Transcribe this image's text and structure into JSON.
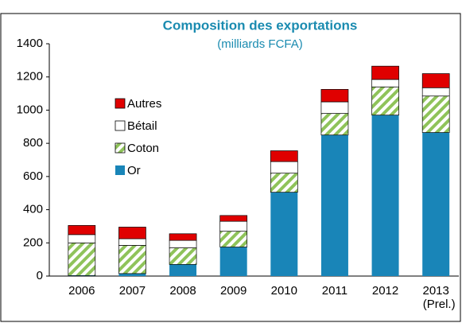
{
  "chart_data": {
    "type": "stacked_bar",
    "title": "Composition des exportations",
    "subtitle": "(milliards FCFA)",
    "categories": [
      "2006",
      "2007",
      "2008",
      "2009",
      "2010",
      "2011",
      "2012",
      "2013 (Prel.)"
    ],
    "series": [
      {
        "name": "Or",
        "color": "#1985b8",
        "values": [
          3,
          15,
          70,
          175,
          505,
          850,
          970,
          865
        ]
      },
      {
        "name": "Coton",
        "color": "#8fc35a",
        "values": [
          197,
          170,
          100,
          95,
          115,
          130,
          170,
          220
        ]
      },
      {
        "name": "Bétail",
        "color": "#ffffff",
        "values": [
          50,
          40,
          45,
          60,
          70,
          70,
          45,
          50
        ]
      },
      {
        "name": "Autres",
        "color": "#e00000",
        "values": [
          55,
          70,
          40,
          35,
          65,
          75,
          80,
          85
        ]
      }
    ],
    "ylim": [
      0,
      1400
    ],
    "yticks": [
      0,
      200,
      400,
      600,
      800,
      1000,
      1200,
      1400
    ],
    "grid": false
  }
}
